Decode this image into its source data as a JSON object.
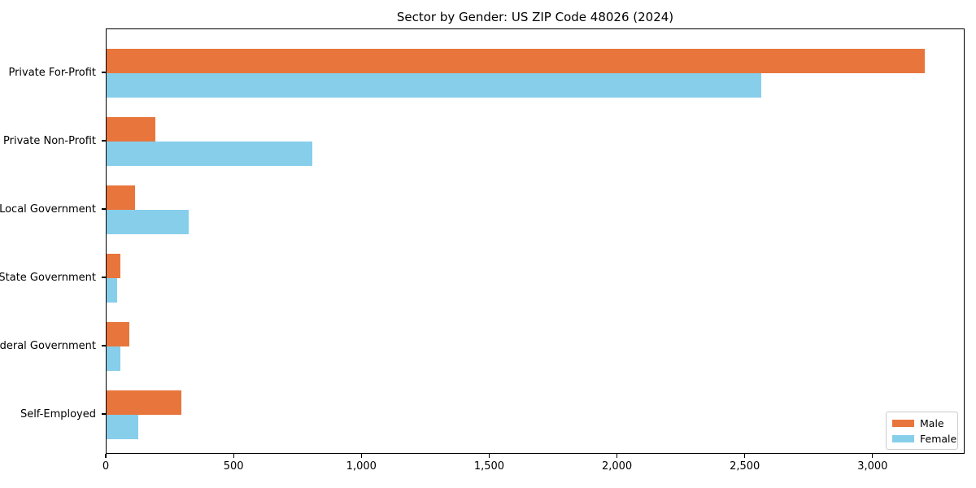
{
  "title": "Sector by Gender: US ZIP Code 48026 (2024)",
  "colors": {
    "male": "#e8763c",
    "female": "#87ceeb",
    "axis": "#000000",
    "legend_border": "#cccccc",
    "background": "#ffffff"
  },
  "legend": {
    "items": [
      {
        "label": "Male",
        "color": "#e8763c"
      },
      {
        "label": "Female",
        "color": "#87ceeb"
      }
    ]
  },
  "chart_data": {
    "type": "bar",
    "orientation": "horizontal",
    "title": "Sector by Gender: US ZIP Code 48026 (2024)",
    "categories": [
      "Private For-Profit",
      "Private Non-Profit",
      "Local Government",
      "State Government",
      "Federal Government",
      "Self-Employed"
    ],
    "series": [
      {
        "name": "Male",
        "color": "#e8763c",
        "values": [
          3200,
          190,
          110,
          55,
          90,
          293
        ]
      },
      {
        "name": "Female",
        "color": "#87ceeb",
        "values": [
          2560,
          805,
          320,
          40,
          53,
          124
        ]
      }
    ],
    "xlabel": "",
    "ylabel": "",
    "xlim": [
      0,
      3360
    ],
    "xticks": [
      0,
      500,
      1000,
      1500,
      2000,
      2500,
      3000
    ],
    "xtick_labels": [
      "0",
      "500",
      "1,000",
      "1,500",
      "2,000",
      "2,500",
      "3,000"
    ],
    "grid": false,
    "legend_position": "lower right"
  }
}
